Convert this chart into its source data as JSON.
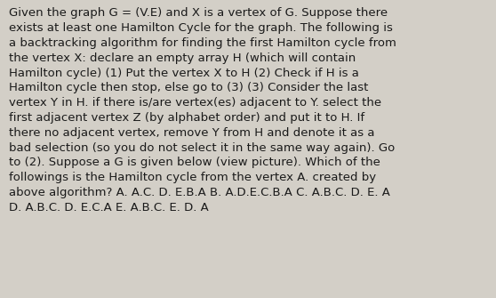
{
  "background_color": "#d3cfc7",
  "text_color": "#1a1a1a",
  "font_size": 9.5,
  "font_family": "DejaVu Sans",
  "lines": [
    "Given the graph G = (V.E) and X is a vertex of G. Suppose there",
    "exists at least one Hamilton Cycle for the graph. The following is",
    "a backtracking algorithm for finding the first Hamilton cycle from",
    "the vertex X: declare an empty array H (which will contain",
    "Hamilton cycle) (1) Put the vertex X to H (2) Check if H is a",
    "Hamilton cycle then stop, else go to (3) (3) Consider the last",
    "vertex Y in H. if there is/are vertex(es) adjacent to Y. select the",
    "first adjacent vertex Z (by alphabet order) and put it to H. If",
    "there no adjacent vertex, remove Y from H and denote it as a",
    "bad selection (so you do not select it in the same way again). Go",
    "to (2). Suppose a G is given below (view picture). Which of the",
    "followings is the Hamilton cycle from the vertex A. created by",
    "above algorithm? A. A.C. D. E.B.A B. A.D.E.C.B.A C. A.B.C. D. E. A",
    "D. A.B.C. D. E.C.A E. A.B.C. E. D. A"
  ]
}
